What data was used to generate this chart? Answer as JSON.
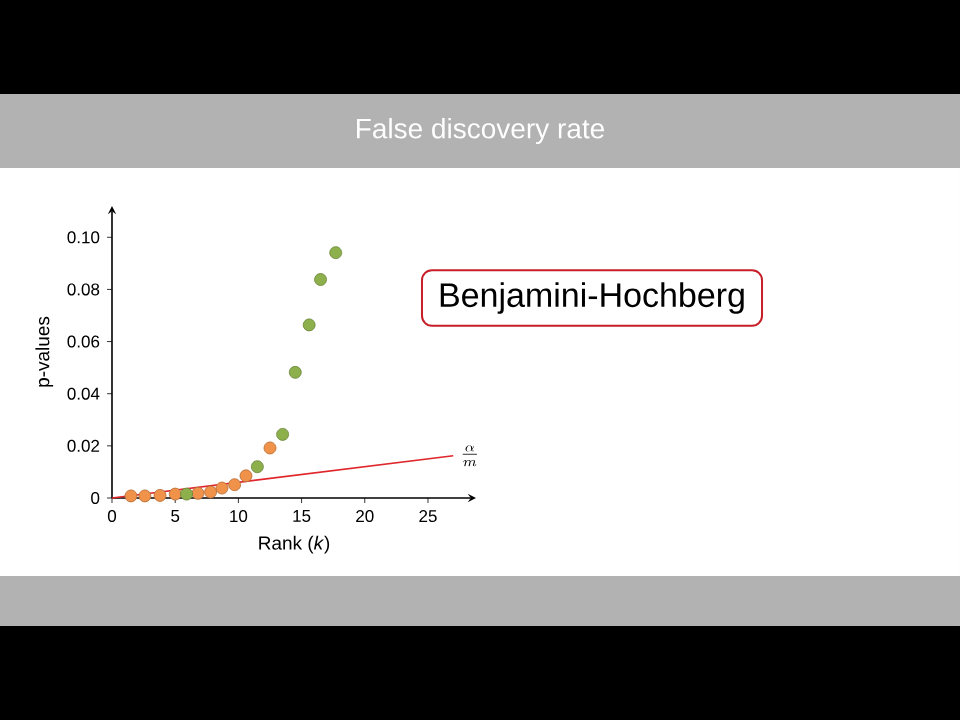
{
  "chart_data": {
    "type": "scatter",
    "title": "False discovery rate",
    "xlabel": "Rank (*k*)",
    "ylabel": "p-values",
    "xlim": [
      0,
      28.8
    ],
    "ylim": [
      0,
      0.112
    ],
    "xticks": [
      0,
      5,
      10,
      15,
      20,
      25
    ],
    "yticks": [
      0,
      0.02,
      0.04,
      0.06,
      0.08,
      {
        "value": 0.1,
        "label": "0.10"
      }
    ],
    "marker": "circle",
    "series": [
      {
        "color": "#f0924a",
        "x": [
          1.5,
          2.6,
          3.8,
          5.0,
          6.8,
          7.8,
          8.7,
          9.7,
          10.6,
          12.5
        ],
        "values": [
          0.0008,
          0.0008,
          0.001,
          0.0015,
          0.0018,
          0.0023,
          0.0038,
          0.0051,
          0.0085,
          0.0192
        ]
      },
      {
        "color": "#8db04c",
        "x": [
          5.9,
          11.5,
          13.5,
          14.5,
          15.6,
          16.5,
          17.7
        ],
        "values": [
          0.0015,
          0.012,
          0.0244,
          0.0482,
          0.0664,
          0.0838,
          0.0941
        ]
      },
      {
        "type": "line",
        "marker": "none",
        "color": "#e0262a",
        "x": [
          0,
          27
        ],
        "values": [
          0,
          0.0162
        ]
      }
    ],
    "annotations": [
      "Benjamini-Hochberg",
      {
        "text": "\\frac{\\alpha}{m}",
        "x": 27,
        "y": 0.0162
      }
    ]
  }
}
